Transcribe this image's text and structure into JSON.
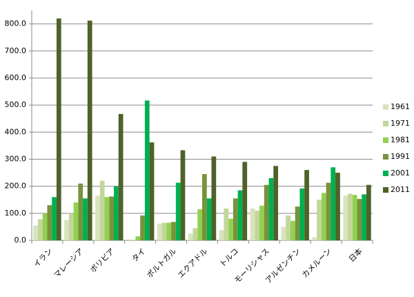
{
  "chart_data": {
    "type": "bar",
    "categories": [
      "イラン",
      "マレーシア",
      "ボリビア",
      "タイ",
      "ポルトガル",
      "エクアドル",
      "トルコ",
      "モーリシャス",
      "アルゼンチン",
      "カメルーン",
      "日本"
    ],
    "series": [
      {
        "name": "1961",
        "color": "#d7e4bd",
        "values": [
          55,
          75,
          165,
          0,
          62,
          25,
          38,
          118,
          50,
          12,
          165
        ]
      },
      {
        "name": "1971",
        "color": "#c3d69b",
        "values": [
          78,
          100,
          220,
          2,
          65,
          45,
          118,
          110,
          92,
          150,
          172
        ]
      },
      {
        "name": "1981",
        "color": "#92d050",
        "values": [
          100,
          140,
          160,
          15,
          65,
          115,
          80,
          128,
          72,
          175,
          168
        ]
      },
      {
        "name": "1991",
        "color": "#77933c",
        "values": [
          130,
          210,
          162,
          92,
          68,
          245,
          155,
          205,
          125,
          213,
          153
        ]
      },
      {
        "name": "2001",
        "color": "#00b050",
        "values": [
          160,
          155,
          200,
          517,
          213,
          155,
          185,
          230,
          192,
          270,
          170
        ]
      },
      {
        "name": "2011",
        "color": "#4f6228",
        "values": [
          820,
          812,
          467,
          362,
          333,
          310,
          290,
          275,
          260,
          250,
          205
        ]
      }
    ],
    "ylim": [
      0,
      850
    ],
    "yticks": [
      {
        "value": 0,
        "label": "0.0"
      },
      {
        "value": 100,
        "label": "100.0"
      },
      {
        "value": 200,
        "label": "200.0"
      },
      {
        "value": 300,
        "label": "300.0"
      },
      {
        "value": 400,
        "label": "400.0"
      },
      {
        "value": 500,
        "label": "500.0"
      },
      {
        "value": 600,
        "label": "600.0"
      },
      {
        "value": 700,
        "label": "700.0"
      },
      {
        "value": 800,
        "label": "800.0"
      }
    ],
    "grid": true,
    "legend": "right"
  }
}
